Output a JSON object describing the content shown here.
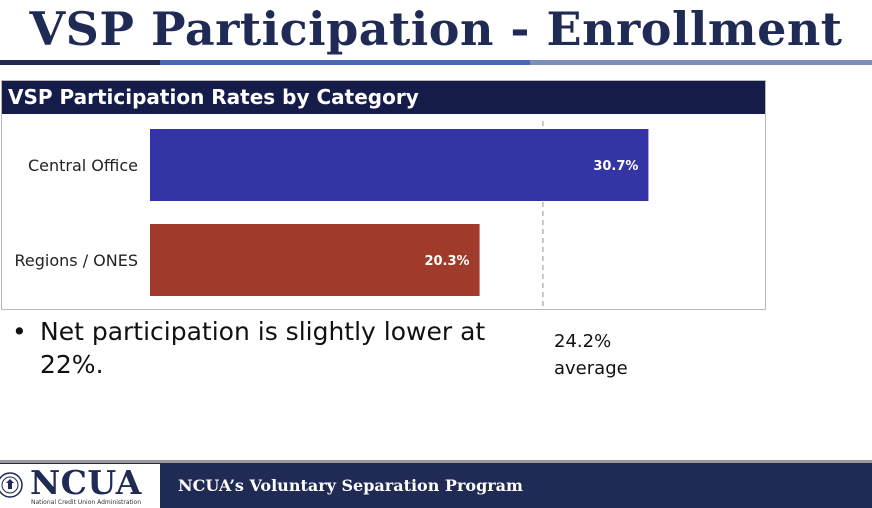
{
  "slide": {
    "title": "VSP Participation - Enrollment"
  },
  "chart_data": {
    "type": "bar",
    "orientation": "horizontal",
    "title": "VSP Participation Rates by Category",
    "categories": [
      "Central Office",
      "Regions / ONES"
    ],
    "values": [
      30.7,
      20.3
    ],
    "data_labels": [
      "30.7%",
      "20.3%"
    ],
    "unit": "%",
    "bar_colors": [
      "#3434a6",
      "#a03b2c"
    ],
    "reference_line": {
      "value": 24.2,
      "label_value": "24.2%",
      "label_text": "average",
      "style": "dashed"
    },
    "xlim": [
      0,
      34
    ],
    "grid": false,
    "legend": "none"
  },
  "notes": {
    "bullet_symbol": "•",
    "bullet_text": "Net participation is slightly lower at 22%."
  },
  "footer": {
    "logo_text": "NCUA",
    "logo_subtext": "National Credit Union Administration",
    "program_title": "NCUA’s Voluntary Separation Program",
    "seal_icon": "ncua-seal-icon"
  },
  "colors": {
    "title": "#1f2a55",
    "chart_header_bg": "#151c4a",
    "footer_bg": "#1f2a55"
  }
}
